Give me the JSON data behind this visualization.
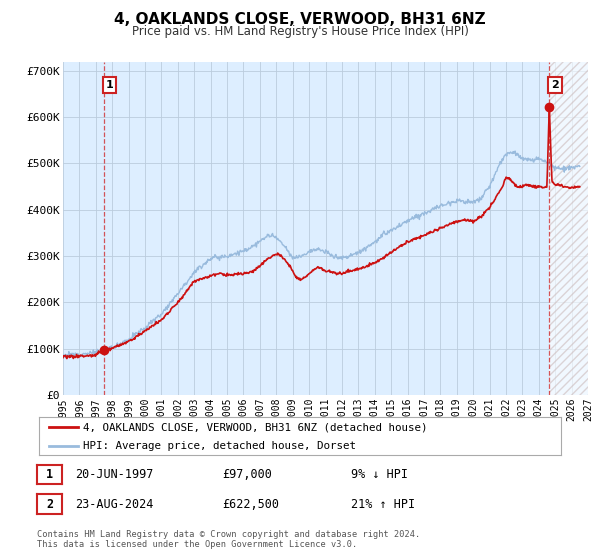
{
  "title": "4, OAKLANDS CLOSE, VERWOOD, BH31 6NZ",
  "subtitle": "Price paid vs. HM Land Registry's House Price Index (HPI)",
  "xlim": [
    1995.0,
    2027.0
  ],
  "ylim": [
    0,
    720000
  ],
  "yticks": [
    0,
    100000,
    200000,
    300000,
    400000,
    500000,
    600000,
    700000
  ],
  "ytick_labels": [
    "£0",
    "£100K",
    "£200K",
    "£300K",
    "£400K",
    "£500K",
    "£600K",
    "£700K"
  ],
  "xticks": [
    1995,
    1996,
    1997,
    1998,
    1999,
    2000,
    2001,
    2002,
    2003,
    2004,
    2005,
    2006,
    2007,
    2008,
    2009,
    2010,
    2011,
    2012,
    2013,
    2014,
    2015,
    2016,
    2017,
    2018,
    2019,
    2020,
    2021,
    2022,
    2023,
    2024,
    2025,
    2026,
    2027
  ],
  "hpi_color": "#99bbdd",
  "price_color": "#cc1111",
  "plot_bg_color": "#ddeeff",
  "sale1_x": 1997.47,
  "sale1_y": 97000,
  "sale2_x": 2024.64,
  "sale2_y": 622500,
  "legend_label_price": "4, OAKLANDS CLOSE, VERWOOD, BH31 6NZ (detached house)",
  "legend_label_hpi": "HPI: Average price, detached house, Dorset",
  "table_row1_num": "1",
  "table_row1_date": "20-JUN-1997",
  "table_row1_price": "£97,000",
  "table_row1_hpi": "9% ↓ HPI",
  "table_row2_num": "2",
  "table_row2_date": "23-AUG-2024",
  "table_row2_price": "£622,500",
  "table_row2_hpi": "21% ↑ HPI",
  "footnote": "Contains HM Land Registry data © Crown copyright and database right 2024.\nThis data is licensed under the Open Government Licence v3.0.",
  "bg_color": "#ffffff",
  "grid_color": "#bbccdd",
  "hatch_region_start": 2024.64,
  "hatch_color": "#ccbbbb"
}
